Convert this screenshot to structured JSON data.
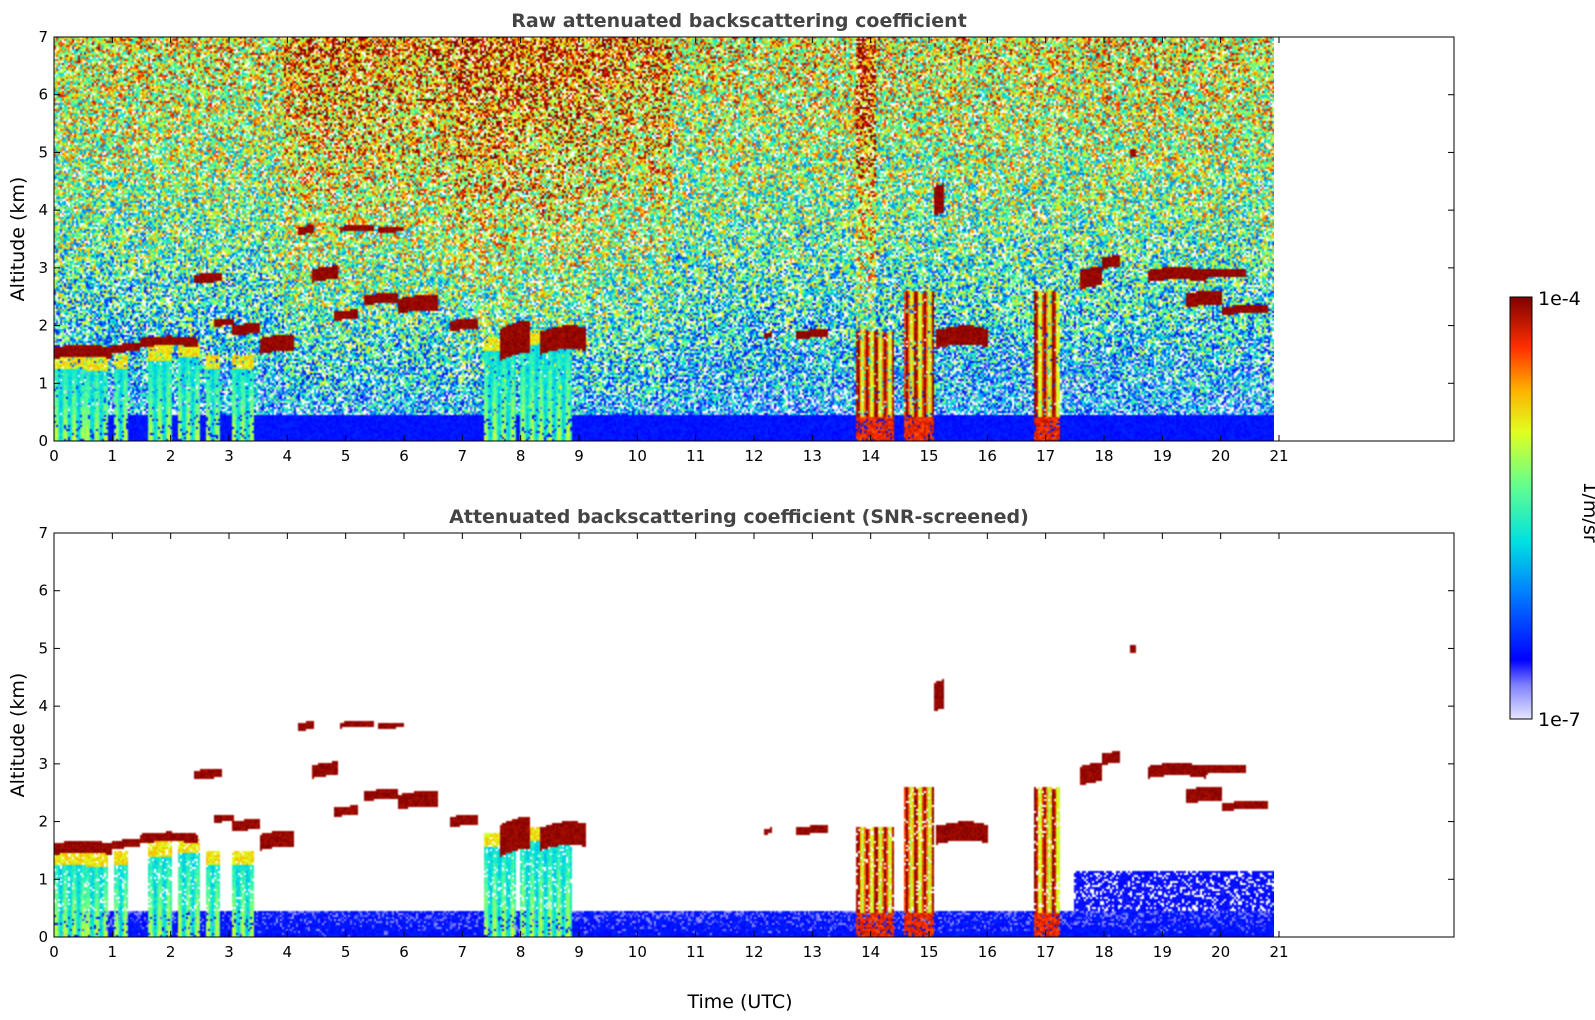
{
  "chart_data": [
    {
      "type": "heatmap",
      "title": "Raw attenuated backscattering coefficient",
      "xlabel": "",
      "ylabel": "Altitude (km)",
      "xlim": [
        0,
        24
      ],
      "ylim": [
        0,
        7
      ],
      "xticks": [
        "0",
        "1",
        "2",
        "3",
        "4",
        "5",
        "6",
        "7",
        "8",
        "9",
        "10",
        "11",
        "12",
        "13",
        "14",
        "15",
        "16",
        "17",
        "18",
        "19",
        "20",
        "21"
      ],
      "yticks": [
        "0",
        "1",
        "2",
        "3",
        "4",
        "5",
        "6",
        "7"
      ],
      "data_end_time": 21.3,
      "grid": false,
      "screened": false
    },
    {
      "type": "heatmap",
      "title": "Attenuated backscattering coefficient (SNR-screened)",
      "xlabel": "Time (UTC)",
      "ylabel": "Altitude (km)",
      "xlim": [
        0,
        24
      ],
      "ylim": [
        0,
        7
      ],
      "xticks": [
        "0",
        "1",
        "2",
        "3",
        "4",
        "5",
        "6",
        "7",
        "8",
        "9",
        "10",
        "11",
        "12",
        "13",
        "14",
        "15",
        "16",
        "17",
        "18",
        "19",
        "20",
        "21"
      ],
      "yticks": [
        "0",
        "1",
        "2",
        "3",
        "4",
        "5",
        "6",
        "7"
      ],
      "data_end_time": 21.3,
      "grid": false,
      "screened": true
    }
  ],
  "colorbar": {
    "max_label": "1e-4",
    "min_label": "1e-7",
    "unit_label": "1/m/sr",
    "scale": "log",
    "colormap": "jet"
  },
  "features": {
    "cloud_layers": [
      {
        "t0": 0.0,
        "t1": 1.0,
        "z0": 1.42,
        "z1": 1.62
      },
      {
        "t0": 1.0,
        "t1": 1.5,
        "z0": 1.52,
        "z1": 1.66
      },
      {
        "t0": 1.5,
        "t1": 2.5,
        "z0": 1.62,
        "z1": 1.78
      },
      {
        "t0": 2.45,
        "t1": 2.95,
        "z0": 2.72,
        "z1": 2.88
      },
      {
        "t0": 2.8,
        "t1": 3.15,
        "z0": 1.98,
        "z1": 2.1
      },
      {
        "t0": 3.1,
        "t1": 3.6,
        "z0": 1.82,
        "z1": 2.0
      },
      {
        "t0": 3.6,
        "t1": 4.2,
        "z0": 1.5,
        "z1": 1.78
      },
      {
        "t0": 4.25,
        "t1": 4.55,
        "z0": 3.57,
        "z1": 3.71
      },
      {
        "t0": 4.5,
        "t1": 4.95,
        "z0": 2.75,
        "z1": 2.98
      },
      {
        "t0": 4.9,
        "t1": 5.3,
        "z0": 2.08,
        "z1": 2.24
      },
      {
        "t0": 5.0,
        "t1": 5.6,
        "z0": 3.62,
        "z1": 3.72
      },
      {
        "t0": 5.4,
        "t1": 6.0,
        "z0": 2.35,
        "z1": 2.52
      },
      {
        "t0": 5.65,
        "t1": 6.1,
        "z0": 3.6,
        "z1": 3.7
      },
      {
        "t0": 6.0,
        "t1": 6.7,
        "z0": 2.2,
        "z1": 2.46
      },
      {
        "t0": 6.9,
        "t1": 7.4,
        "z0": 1.9,
        "z1": 2.08
      },
      {
        "t0": 7.8,
        "t1": 8.3,
        "z0": 1.4,
        "z1": 1.95
      },
      {
        "t0": 8.5,
        "t1": 9.3,
        "z0": 1.5,
        "z1": 1.9
      },
      {
        "t0": 12.4,
        "t1": 12.55,
        "z0": 1.78,
        "z1": 1.88
      },
      {
        "t0": 12.95,
        "t1": 13.5,
        "z0": 1.76,
        "z1": 1.9
      },
      {
        "t0": 15.4,
        "t1": 16.3,
        "z0": 1.6,
        "z1": 1.92
      },
      {
        "t0": 17.9,
        "t1": 18.3,
        "z0": 2.62,
        "z1": 2.95
      },
      {
        "t0": 18.3,
        "t1": 18.6,
        "z0": 2.98,
        "z1": 3.18
      },
      {
        "t0": 19.1,
        "t1": 20.1,
        "z0": 2.75,
        "z1": 2.96
      },
      {
        "t0": 19.75,
        "t1": 20.4,
        "z0": 2.3,
        "z1": 2.55
      },
      {
        "t0": 20.4,
        "t1": 21.2,
        "z0": 2.18,
        "z1": 2.32
      },
      {
        "t0": 20.1,
        "t1": 20.8,
        "z0": 2.82,
        "z1": 2.96
      },
      {
        "t0": 18.78,
        "t1": 18.9,
        "z0": 4.92,
        "z1": 5.06
      },
      {
        "t0": 15.35,
        "t1": 15.55,
        "z0": 3.9,
        "z1": 4.4
      }
    ],
    "precip_columns": [
      {
        "t0": 0.0,
        "t1": 0.55,
        "z1": 1.5,
        "core": false
      },
      {
        "t0": 0.55,
        "t1": 0.95,
        "z1": 1.45,
        "core": false
      },
      {
        "t0": 1.05,
        "t1": 1.3,
        "z1": 1.5,
        "core": false
      },
      {
        "t0": 1.65,
        "t1": 2.05,
        "z1": 1.65,
        "core": false
      },
      {
        "t0": 2.15,
        "t1": 2.55,
        "z1": 1.7,
        "core": false
      },
      {
        "t0": 2.65,
        "t1": 2.9,
        "z1": 1.5,
        "core": false
      },
      {
        "t0": 3.1,
        "t1": 3.5,
        "z1": 1.5,
        "core": false
      },
      {
        "t0": 7.5,
        "t1": 8.05,
        "z1": 1.8,
        "core": false
      },
      {
        "t0": 8.15,
        "t1": 9.05,
        "z1": 1.9,
        "core": false
      },
      {
        "t0": 14.0,
        "t1": 14.65,
        "z1": 1.9,
        "core": true
      },
      {
        "t0": 14.85,
        "t1": 15.35,
        "z1": 2.6,
        "core": true
      },
      {
        "t0": 17.1,
        "t1": 17.55,
        "z1": 2.6,
        "core": true
      }
    ],
    "aerosol_top_km": 0.45
  }
}
